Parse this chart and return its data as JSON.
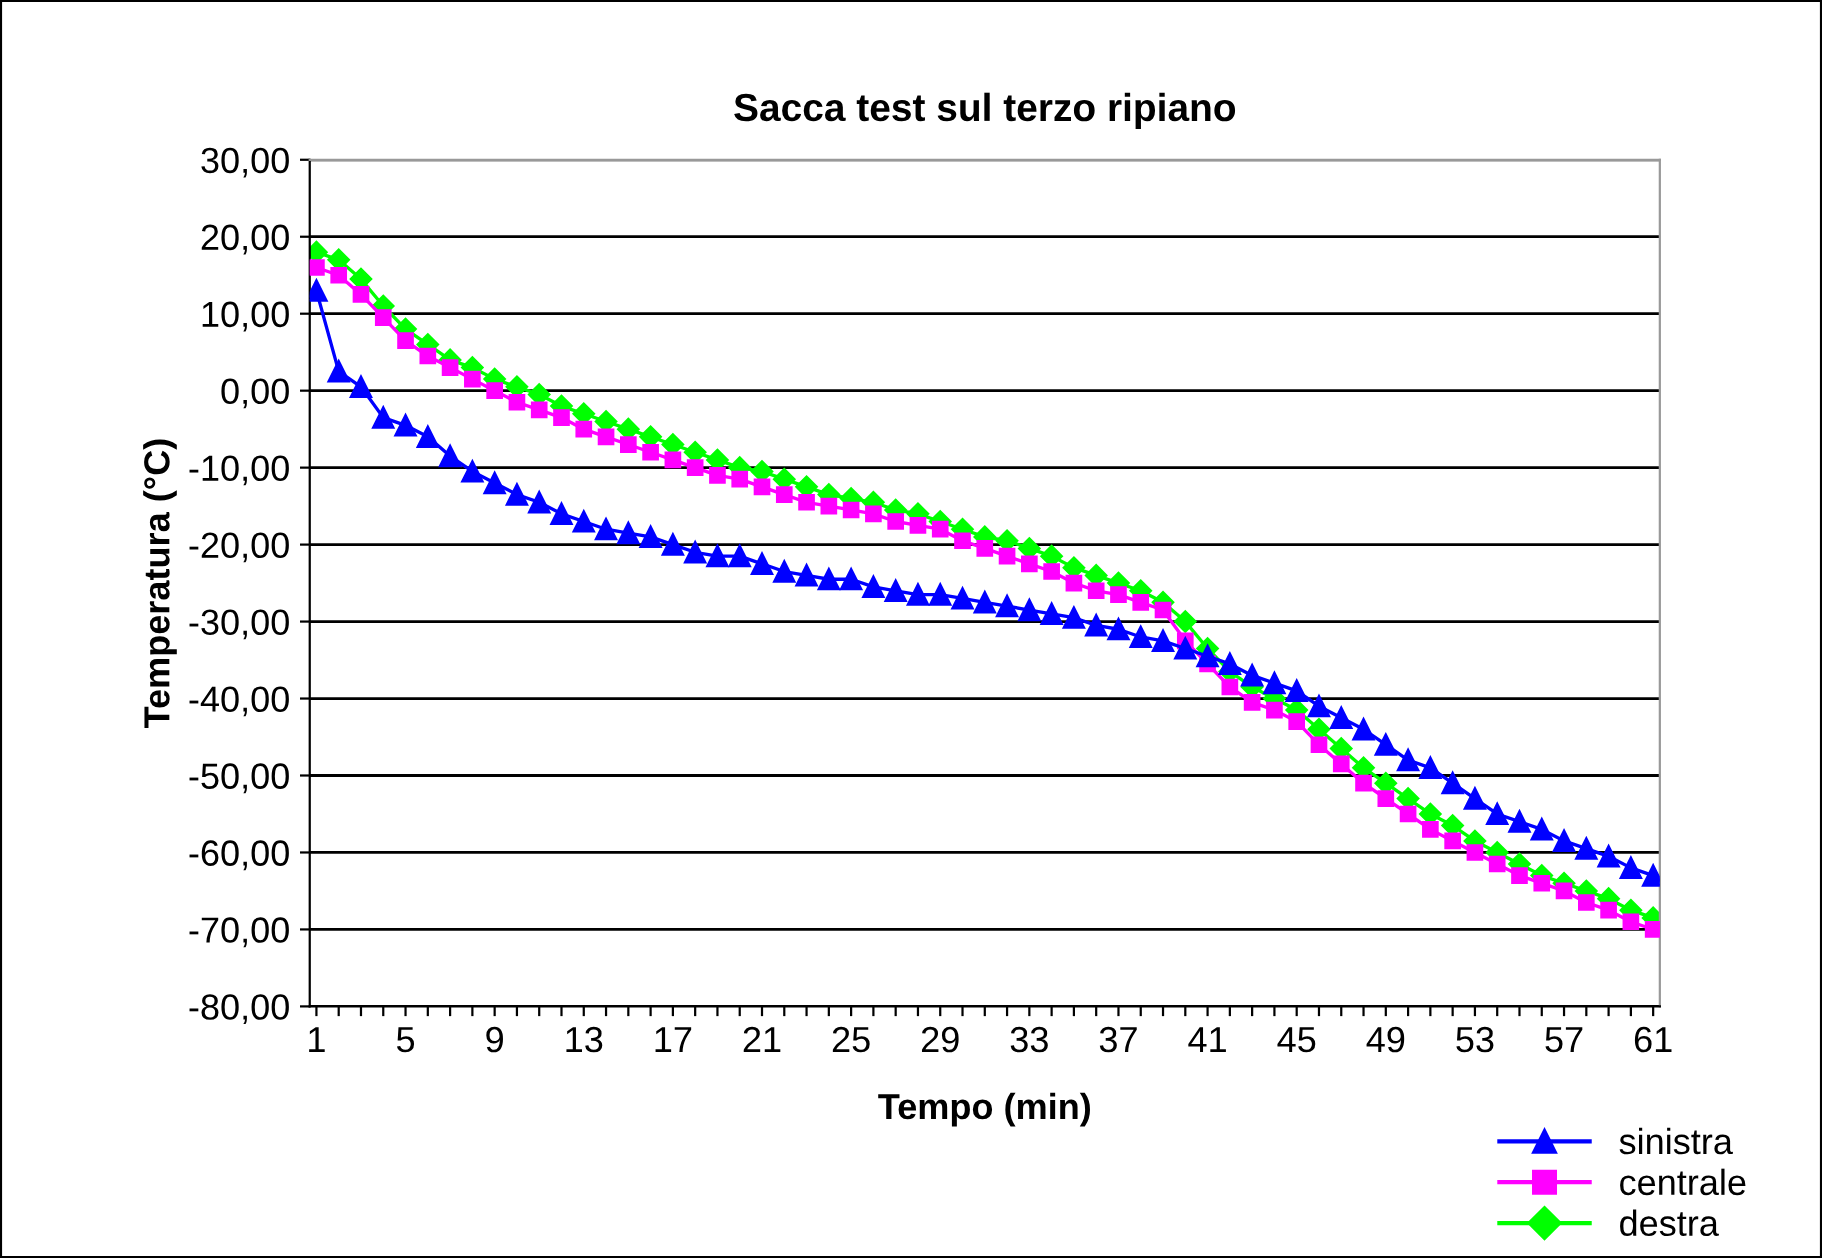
{
  "chart_data": {
    "type": "line",
    "title": "Sacca test sul terzo ripiano",
    "xlabel": "Tempo (min)",
    "ylabel": "Temperatura (°C)",
    "categories": [
      "1",
      null,
      null,
      null,
      "5",
      null,
      null,
      null,
      "9",
      null,
      null,
      null,
      "13",
      null,
      null,
      null,
      "17",
      null,
      null,
      null,
      "21",
      null,
      null,
      null,
      "25",
      null,
      null,
      null,
      "29",
      null,
      null,
      null,
      "33",
      null,
      null,
      null,
      "37",
      null,
      null,
      null,
      "41",
      null,
      null,
      null,
      "45",
      null,
      null,
      null,
      "49",
      null,
      null,
      null,
      "53",
      null,
      null,
      null,
      "57",
      null,
      null,
      null,
      "61"
    ],
    "series": [
      {
        "name": "sinistra",
        "color": "#0000ff",
        "marker": "triangle",
        "values": [
          13,
          2.5,
          0.5,
          -3.5,
          -4.5,
          -6,
          -8.5,
          -10.5,
          -12,
          -13.5,
          -14.5,
          -16,
          -17,
          -18,
          -18.5,
          -19,
          -20,
          -21,
          -21.5,
          -21.5,
          -22.5,
          -23.5,
          -24,
          -24.5,
          -24.5,
          -25.5,
          -26,
          -26.5,
          -26.5,
          -27,
          -27.5,
          -28,
          -28.5,
          -29,
          -29.5,
          -30.5,
          -31,
          -32,
          -32.5,
          -33.5,
          -34.5,
          -35.5,
          -37,
          -38,
          -39,
          -41,
          -42.5,
          -44,
          -46,
          -48,
          -49,
          -51,
          -53,
          -55,
          -56,
          -57,
          -58.5,
          -59.5,
          -60.5,
          -62,
          -63
        ]
      },
      {
        "name": "centrale",
        "color": "#ff00ff",
        "marker": "square",
        "values": [
          16,
          15,
          12.5,
          9.5,
          6.5,
          4.5,
          3,
          1.5,
          0,
          -1.5,
          -2.5,
          -3.5,
          -5,
          -6,
          -7,
          -8,
          -9,
          -10,
          -11,
          -11.5,
          -12.5,
          -13.5,
          -14.5,
          -15,
          -15.5,
          -16,
          -17,
          -17.5,
          -18,
          -19.5,
          -20.5,
          -21.5,
          -22.5,
          -23.5,
          -25,
          -26,
          -26.5,
          -27.5,
          -28.5,
          -32.5,
          -35.5,
          -38.5,
          -40.5,
          -41.5,
          -43,
          -46,
          -48.5,
          -51,
          -53,
          -55,
          -57,
          -58.5,
          -60,
          -61.5,
          -63,
          -64,
          -65,
          -66.5,
          -67.5,
          -69,
          -70
        ]
      },
      {
        "name": "destra",
        "color": "#00ff00",
        "marker": "diamond",
        "values": [
          18,
          17,
          14.5,
          11,
          8,
          6,
          4,
          3,
          1.5,
          0.5,
          -0.5,
          -2,
          -3,
          -4,
          -5,
          -6,
          -7,
          -8,
          -9,
          -10,
          -10.5,
          -11.5,
          -12.5,
          -13.5,
          -14,
          -14.5,
          -15.5,
          -16,
          -17,
          -18,
          -19,
          -19.5,
          -20.5,
          -21.5,
          -23,
          -24,
          -25,
          -26,
          -27.5,
          -30,
          -33.5,
          -36.5,
          -38.5,
          -40,
          -41.5,
          -44,
          -46.5,
          -49,
          -51,
          -53,
          -55,
          -56.5,
          -58.5,
          -60,
          -61.5,
          -63,
          -64,
          -65,
          -66,
          -67.5,
          -68.5
        ]
      }
    ],
    "ylim": [
      -80,
      30
    ],
    "yticks": [
      {
        "value": -80,
        "label": "-80,00"
      },
      {
        "value": -70,
        "label": "-70,00"
      },
      {
        "value": -60,
        "label": "-60,00"
      },
      {
        "value": -50,
        "label": "-50,00"
      },
      {
        "value": -40,
        "label": "-40,00"
      },
      {
        "value": -30,
        "label": "-30,00"
      },
      {
        "value": -20,
        "label": "-20,00"
      },
      {
        "value": -10,
        "label": "-10,00"
      },
      {
        "value": 0,
        "label": "0,00"
      },
      {
        "value": 10,
        "label": "10,00"
      },
      {
        "value": 20,
        "label": "20,00"
      },
      {
        "value": 30,
        "label": "30,00"
      }
    ],
    "grid": "y",
    "legend": "bottom right",
    "line_style": "solid"
  }
}
